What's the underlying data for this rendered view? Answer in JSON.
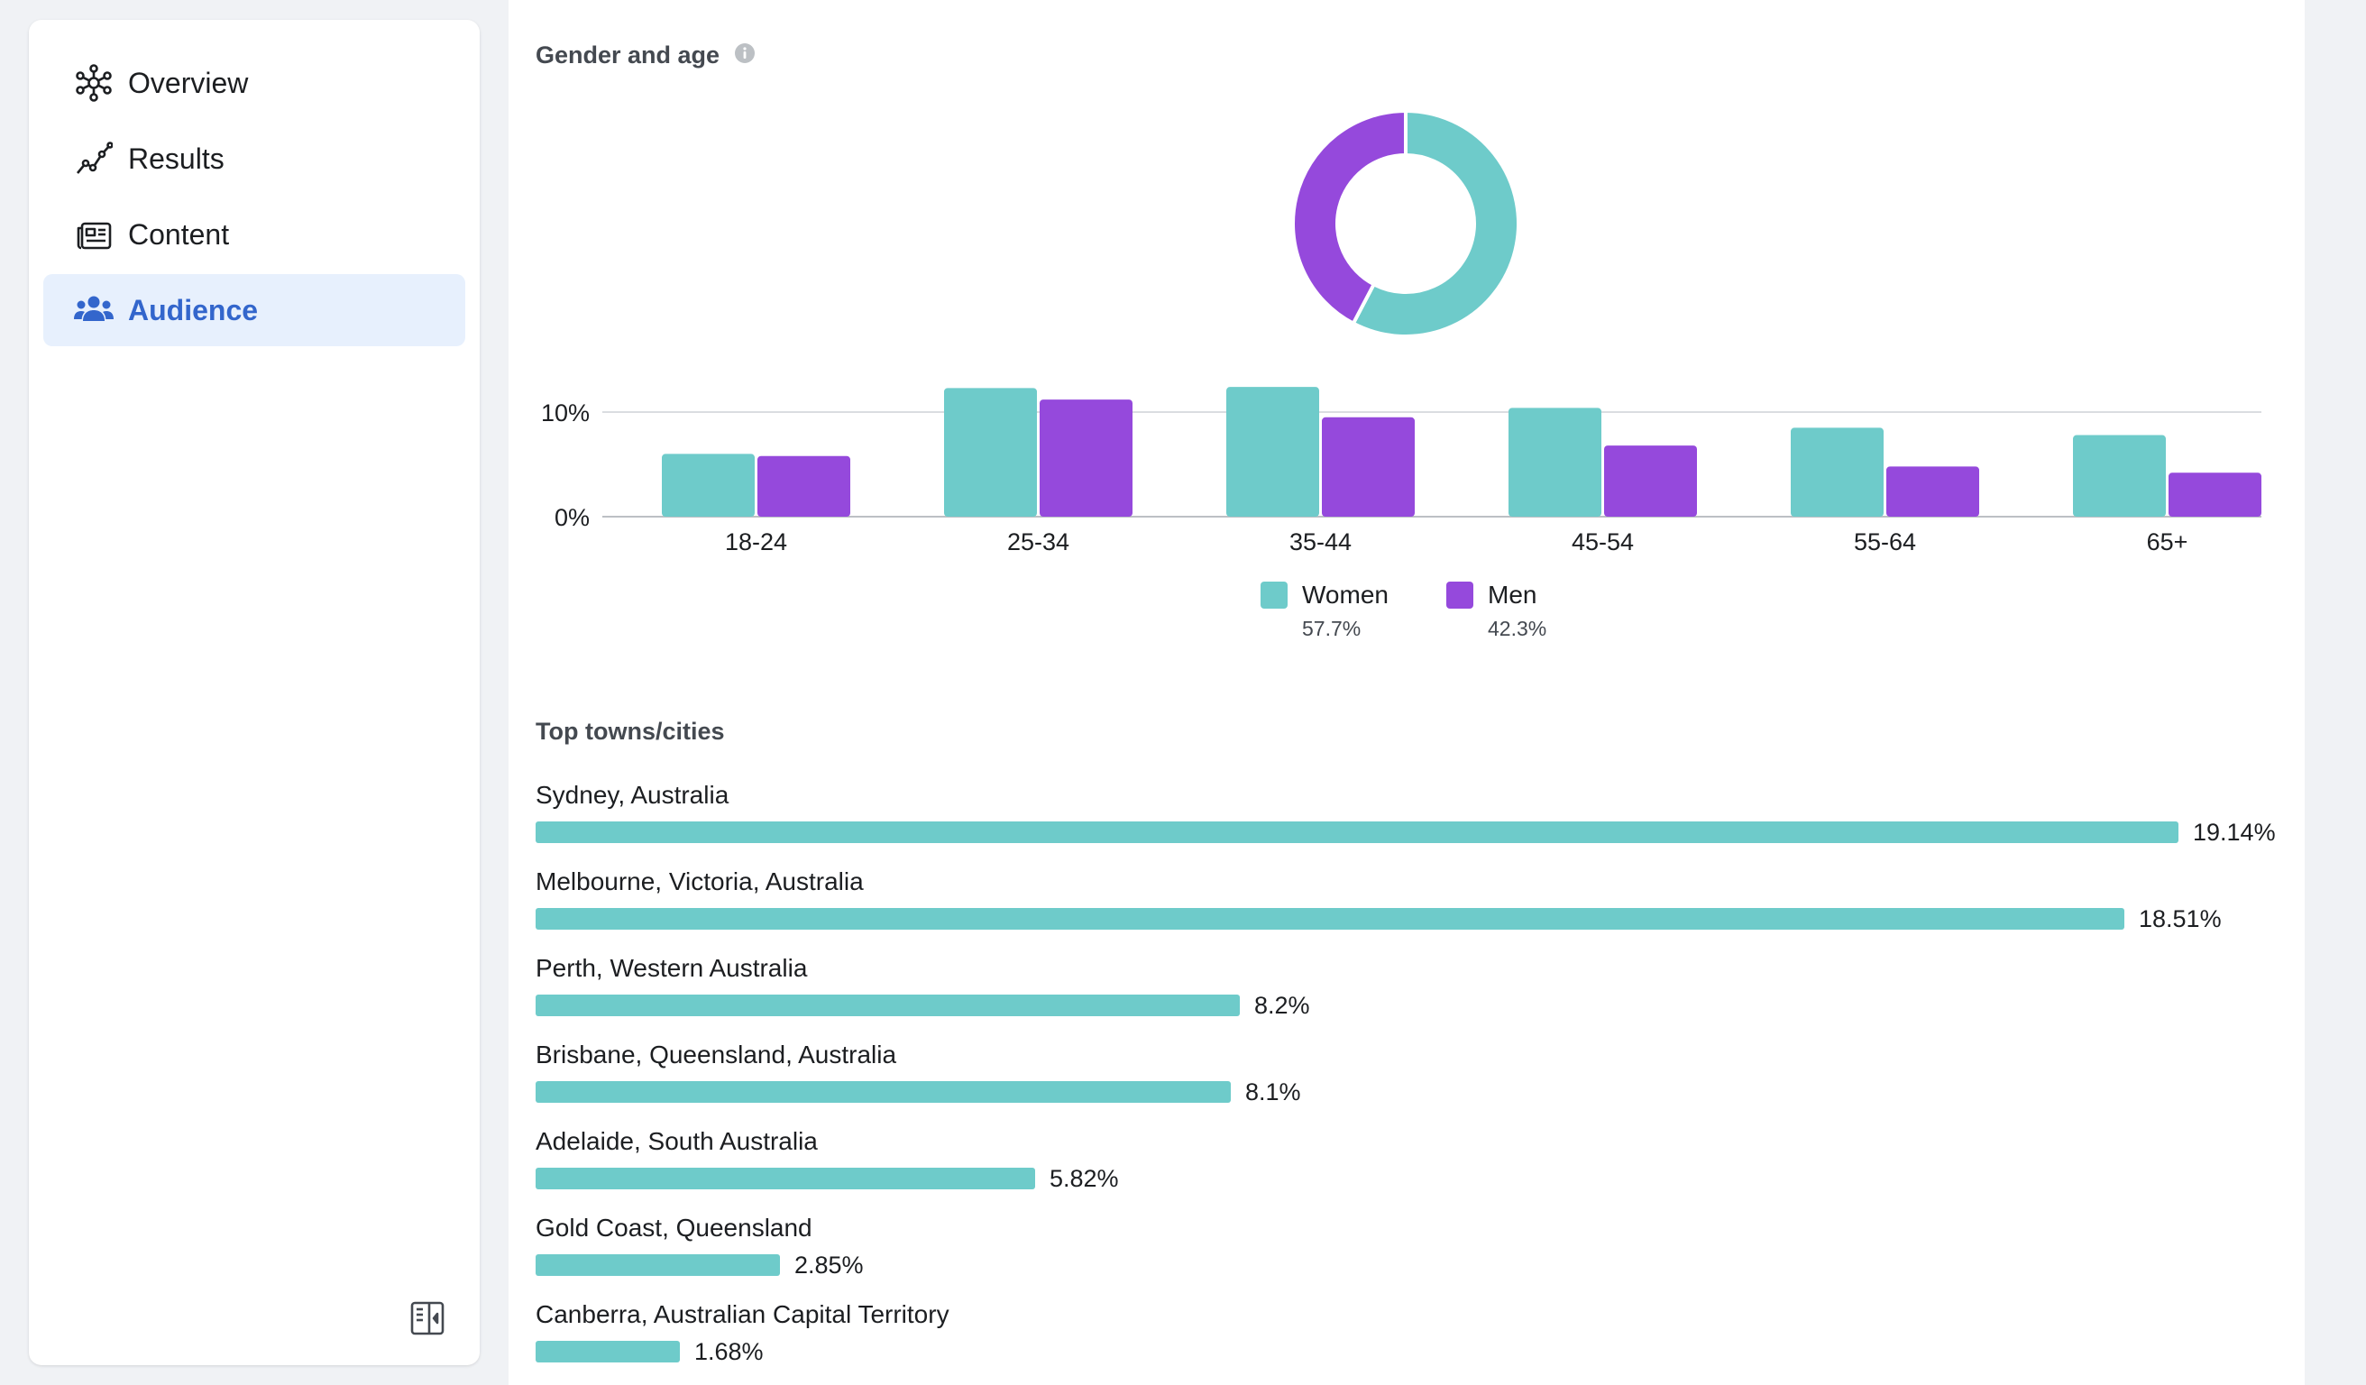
{
  "sidebar": {
    "items": [
      {
        "label": "Overview",
        "icon": "overview-icon",
        "active": false
      },
      {
        "label": "Results",
        "icon": "results-icon",
        "active": false
      },
      {
        "label": "Content",
        "icon": "content-icon",
        "active": false
      },
      {
        "label": "Audience",
        "icon": "audience-icon",
        "active": true
      }
    ],
    "collapse_icon": "sidebar-collapse-icon"
  },
  "colors": {
    "women": "#6ecbca",
    "men": "#9549dc",
    "active_nav": "#3366cc",
    "active_nav_bg": "#e7f0fd"
  },
  "gender_age": {
    "title": "Gender and age",
    "legend": [
      {
        "label": "Women",
        "pct": "57.7%"
      },
      {
        "label": "Men",
        "pct": "42.3%"
      }
    ]
  },
  "chart_data": {
    "type": "bar",
    "title": "Gender and age",
    "categories": [
      "18-24",
      "25-34",
      "35-44",
      "45-54",
      "55-64",
      "65+"
    ],
    "series": [
      {
        "name": "Women",
        "values": [
          6.0,
          12.3,
          12.4,
          10.4,
          8.5,
          7.8
        ]
      },
      {
        "name": "Men",
        "values": [
          5.8,
          11.2,
          9.5,
          6.8,
          4.8,
          4.2
        ]
      }
    ],
    "y_ticks": [
      "0%",
      "10%"
    ],
    "ylim": [
      0,
      13
    ],
    "donut": [
      {
        "name": "Women",
        "value": 57.7
      },
      {
        "name": "Men",
        "value": 42.3
      }
    ]
  },
  "cities": {
    "title": "Top towns/cities",
    "items": [
      {
        "name": "Sydney, Australia",
        "pct": "19.14%",
        "value": 19.14
      },
      {
        "name": "Melbourne, Victoria, Australia",
        "pct": "18.51%",
        "value": 18.51
      },
      {
        "name": "Perth, Western Australia",
        "pct": "8.2%",
        "value": 8.2
      },
      {
        "name": "Brisbane, Queensland, Australia",
        "pct": "8.1%",
        "value": 8.1
      },
      {
        "name": "Adelaide, South Australia",
        "pct": "5.82%",
        "value": 5.82
      },
      {
        "name": "Gold Coast, Queensland",
        "pct": "2.85%",
        "value": 2.85
      },
      {
        "name": "Canberra, Australian Capital Territory",
        "pct": "1.68%",
        "value": 1.68
      }
    ]
  }
}
